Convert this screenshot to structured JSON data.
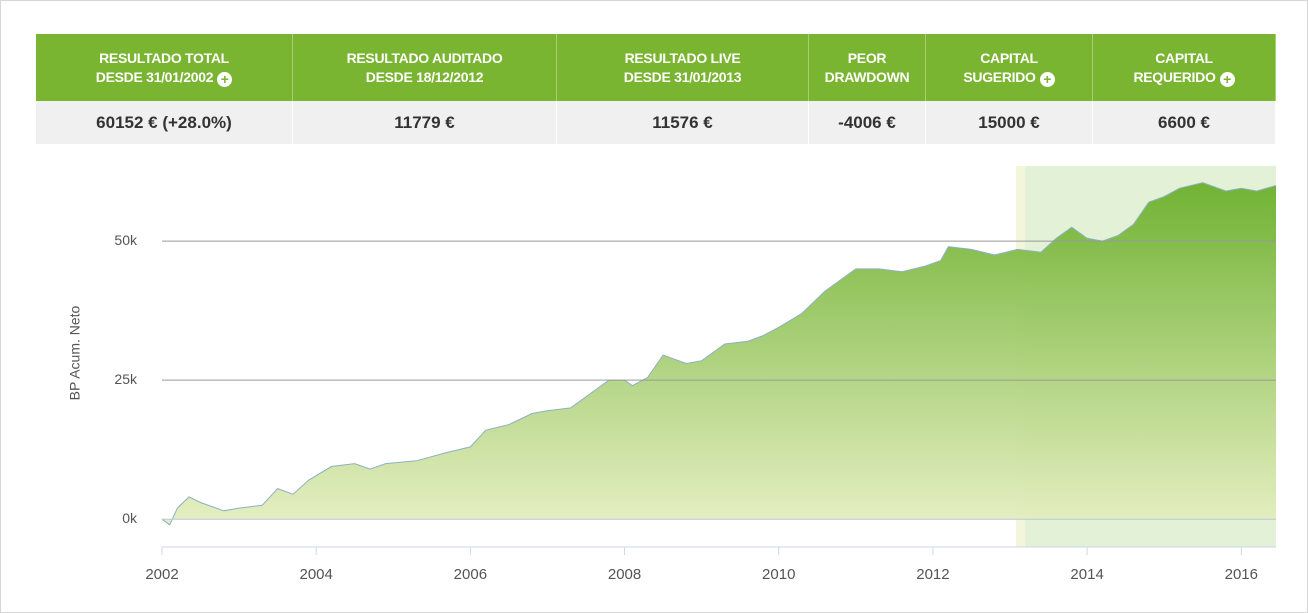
{
  "table": {
    "headers": [
      [
        "RESULTADO TOTAL",
        "DESDE 31/01/2002"
      ],
      [
        "RESULTADO AUDITADO",
        "DESDE 18/12/2012"
      ],
      [
        "RESULTADO LIVE",
        "DESDE 31/01/2013"
      ],
      [
        "PEOR",
        "DRAWDOWN"
      ],
      [
        "CAPITAL",
        "SUGERIDO"
      ],
      [
        "CAPITAL",
        "REQUERIDO"
      ]
    ],
    "values": [
      "60152 € (+28.0%)",
      "11779 €",
      "11576 €",
      "-4006 €",
      "15000 €",
      "6600 €"
    ]
  },
  "chart_data": {
    "type": "area",
    "y_label": "BP Acum. Neto",
    "x": [
      2002.0,
      2002.1,
      2002.2,
      2002.35,
      2002.5,
      2002.8,
      2003.0,
      2003.3,
      2003.5,
      2003.7,
      2003.9,
      2004.2,
      2004.5,
      2004.7,
      2004.9,
      2005.3,
      2005.7,
      2006.0,
      2006.2,
      2006.5,
      2006.8,
      2007.0,
      2007.3,
      2007.5,
      2007.8,
      2008.0,
      2008.1,
      2008.3,
      2008.5,
      2008.8,
      2009.0,
      2009.3,
      2009.6,
      2009.8,
      2010.0,
      2010.3,
      2010.6,
      2010.8,
      2011.0,
      2011.3,
      2011.6,
      2011.9,
      2012.1,
      2012.2,
      2012.5,
      2012.8,
      2013.1,
      2013.4,
      2013.6,
      2013.8,
      2014.0,
      2014.2,
      2014.4,
      2014.6,
      2014.8,
      2015.0,
      2015.2,
      2015.5,
      2015.8,
      2016.0,
      2016.2,
      2016.45
    ],
    "values": [
      0,
      -1000,
      2000,
      4000,
      3000,
      1500,
      2000,
      2500,
      5500,
      4500,
      7000,
      9500,
      10000,
      9000,
      10000,
      10500,
      12000,
      13000,
      16000,
      17000,
      19000,
      19500,
      20000,
      22000,
      25000,
      25000,
      24000,
      25500,
      29500,
      28000,
      28500,
      31500,
      32000,
      33000,
      34500,
      37000,
      41000,
      43000,
      45000,
      45000,
      44500,
      45500,
      46500,
      49000,
      48500,
      47500,
      48500,
      48000,
      50500,
      52500,
      50500,
      50000,
      51000,
      53000,
      57000,
      58000,
      59500,
      60500,
      59000,
      59500,
      59000,
      60000
    ],
    "color": "#6aaf2a",
    "line_color": "#8fb0c4",
    "highlight_x": [
      2013.08,
      2016.45
    ],
    "xlim": [
      2002.0,
      2016.45
    ],
    "xticks": [
      2002,
      2004,
      2006,
      2008,
      2010,
      2012,
      2014,
      2016
    ],
    "ylim": [
      -5000,
      63500
    ],
    "yticks": [
      {
        "value": 0,
        "label": "0k"
      },
      {
        "value": 25000,
        "label": "25k"
      },
      {
        "value": 50000,
        "label": "50k"
      }
    ],
    "grid": true
  }
}
